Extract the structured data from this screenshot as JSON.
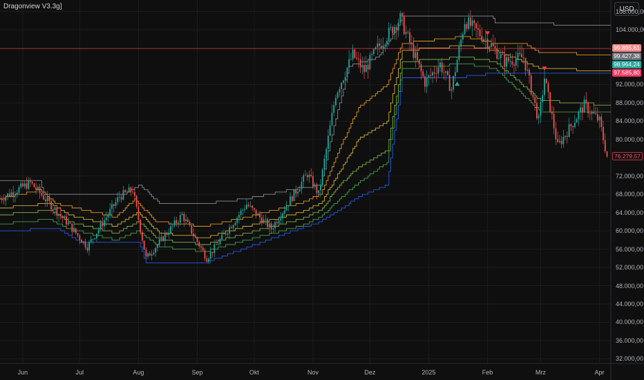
{
  "title": "Dragonview V3.3g]",
  "currency_button": "USD",
  "colors": {
    "background": "#0f0f0f",
    "candle_up": "#26a69a",
    "candle_down": "#ef5350",
    "resistance_line": "#f23645",
    "band_outer": "#9598a1",
    "band_orange": "#f5a623",
    "band_yellow": "#e8c23a",
    "band_green": "#8bc34a",
    "band_dgreen": "#4caf50",
    "band_blue": "#2962ff"
  },
  "price_badges": [
    {
      "label": "99.895,61",
      "value": 99895.61,
      "bg": "#f28b8b"
    },
    {
      "label": "99.427,38",
      "value": 99427.38,
      "bg": "#6d7079"
    },
    {
      "label": "98.964,24",
      "value": 98964.24,
      "bg": "#26a69a"
    },
    {
      "label": "97.585,80",
      "value": 97585.8,
      "bg": "#f23661"
    },
    {
      "label": "76.279,57",
      "value": 76279.57,
      "bg": "outline"
    }
  ],
  "chart_data": {
    "type": "candlestick",
    "title": "Dragonview V3.3g]",
    "y_range": [
      31000,
      110500
    ],
    "y_ticks": [
      {
        "label": "108.000,00",
        "value": 108000
      },
      {
        "label": "104.000,00",
        "value": 104000
      },
      {
        "label": "92.000,00",
        "value": 92000
      },
      {
        "label": "88.000,00",
        "value": 88000
      },
      {
        "label": "84.000,00",
        "value": 84000
      },
      {
        "label": "80.000,00",
        "value": 80000
      },
      {
        "label": "72.000,00",
        "value": 72000
      },
      {
        "label": "68.000,00",
        "value": 68000
      },
      {
        "label": "64.000,00",
        "value": 64000
      },
      {
        "label": "60.000,00",
        "value": 60000
      },
      {
        "label": "56.000,00",
        "value": 56000
      },
      {
        "label": "52.000,00",
        "value": 52000
      },
      {
        "label": "48.000,00",
        "value": 48000
      },
      {
        "label": "44.000,00",
        "value": 44000
      },
      {
        "label": "40.000,00",
        "value": 40000
      },
      {
        "label": "36.000,00",
        "value": 36000
      },
      {
        "label": "32.000,00",
        "value": 32000
      }
    ],
    "x_range": [
      "2024-05-20",
      "2025-04-07"
    ],
    "x_ticks": [
      {
        "label": "Jun",
        "date": "2024-06-01"
      },
      {
        "label": "Jul",
        "date": "2024-07-01"
      },
      {
        "label": "Aug",
        "date": "2024-08-01"
      },
      {
        "label": "Sep",
        "date": "2024-09-01"
      },
      {
        "label": "Okt",
        "date": "2024-10-01"
      },
      {
        "label": "Nov",
        "date": "2024-11-01"
      },
      {
        "label": "Dez",
        "date": "2024-12-01"
      },
      {
        "label": "2025",
        "date": "2025-01-01"
      },
      {
        "label": "Feb",
        "date": "2025-02-01"
      },
      {
        "label": "Mrz",
        "date": "2025-03-01"
      },
      {
        "label": "Apr",
        "date": "2025-04-01"
      }
    ],
    "price_path": [
      [
        "2024-05-20",
        67000
      ],
      [
        "2024-06-05",
        70500
      ],
      [
        "2024-06-24",
        62000
      ],
      [
        "2024-07-05",
        56500
      ],
      [
        "2024-07-22",
        67500
      ],
      [
        "2024-07-29",
        69000
      ],
      [
        "2024-08-05",
        54000
      ],
      [
        "2024-08-24",
        63500
      ],
      [
        "2024-09-06",
        54000
      ],
      [
        "2024-09-27",
        65800
      ],
      [
        "2024-10-10",
        60500
      ],
      [
        "2024-10-29",
        72500
      ],
      [
        "2024-11-04",
        68000
      ],
      [
        "2024-11-13",
        90000
      ],
      [
        "2024-11-22",
        98500
      ],
      [
        "2024-11-28",
        95000
      ],
      [
        "2024-12-05",
        100000
      ],
      [
        "2024-12-17",
        106500
      ],
      [
        "2024-12-30",
        92500
      ],
      [
        "2025-01-07",
        96500
      ],
      [
        "2025-01-13",
        91000
      ],
      [
        "2025-01-20",
        106000
      ],
      [
        "2025-01-31",
        102000
      ],
      [
        "2025-02-10",
        97000
      ],
      [
        "2025-02-20",
        98000
      ],
      [
        "2025-02-28",
        84000
      ],
      [
        "2025-03-03",
        93500
      ],
      [
        "2025-03-10",
        78500
      ],
      [
        "2025-03-24",
        87500
      ],
      [
        "2025-04-01",
        84000
      ],
      [
        "2025-04-05",
        76300
      ]
    ],
    "bands": [
      {
        "color": "#9598a1",
        "points": [
          [
            "2024-05-20",
            71000
          ],
          [
            "2024-06-10",
            71000
          ],
          [
            "2024-06-12",
            68000
          ],
          [
            "2024-07-25",
            68000
          ],
          [
            "2024-08-02",
            70000
          ],
          [
            "2024-08-12",
            66000
          ],
          [
            "2024-09-05",
            66000
          ],
          [
            "2024-09-27",
            67000
          ],
          [
            "2024-10-20",
            69000
          ],
          [
            "2024-11-05",
            70000
          ],
          [
            "2024-11-12",
            83000
          ],
          [
            "2024-11-20",
            96000
          ],
          [
            "2024-12-05",
            98000
          ],
          [
            "2024-12-15",
            104000
          ],
          [
            "2024-12-18",
            107000
          ],
          [
            "2025-02-03",
            107000
          ],
          [
            "2025-02-05",
            105500
          ],
          [
            "2025-04-07",
            105000
          ]
        ]
      },
      {
        "color": "#f5a623",
        "points": [
          [
            "2024-05-20",
            67000
          ],
          [
            "2024-06-10",
            69000
          ],
          [
            "2024-06-18",
            66000
          ],
          [
            "2024-07-20",
            63000
          ],
          [
            "2024-07-30",
            67000
          ],
          [
            "2024-08-10",
            62000
          ],
          [
            "2024-09-05",
            61000
          ],
          [
            "2024-09-27",
            63000
          ],
          [
            "2024-10-25",
            66000
          ],
          [
            "2024-11-05",
            68000
          ],
          [
            "2024-11-15",
            78000
          ],
          [
            "2024-11-25",
            87000
          ],
          [
            "2024-12-10",
            92000
          ],
          [
            "2024-12-18",
            101000
          ],
          [
            "2025-01-20",
            102500
          ],
          [
            "2025-02-05",
            101000
          ],
          [
            "2025-02-20",
            101000
          ],
          [
            "2025-03-01",
            99000
          ],
          [
            "2025-04-07",
            98500
          ]
        ]
      },
      {
        "color": "#e8c23a",
        "points": [
          [
            "2024-05-20",
            65000
          ],
          [
            "2024-06-15",
            66000
          ],
          [
            "2024-06-25",
            63500
          ],
          [
            "2024-07-20",
            61000
          ],
          [
            "2024-08-01",
            64000
          ],
          [
            "2024-08-12",
            59500
          ],
          [
            "2024-09-05",
            58500
          ],
          [
            "2024-09-27",
            61000
          ],
          [
            "2024-10-25",
            64000
          ],
          [
            "2024-11-05",
            66000
          ],
          [
            "2024-11-15",
            73000
          ],
          [
            "2024-11-25",
            80000
          ],
          [
            "2024-12-10",
            84000
          ],
          [
            "2024-12-18",
            99500
          ],
          [
            "2025-01-20",
            100500
          ],
          [
            "2025-02-05",
            99500
          ],
          [
            "2025-03-01",
            95500
          ],
          [
            "2025-04-07",
            95000
          ]
        ]
      },
      {
        "color": "#8bc34a",
        "points": [
          [
            "2024-05-20",
            63500
          ],
          [
            "2024-06-15",
            64500
          ],
          [
            "2024-06-25",
            62000
          ],
          [
            "2024-07-20",
            59500
          ],
          [
            "2024-08-01",
            62000
          ],
          [
            "2024-08-12",
            58000
          ],
          [
            "2024-09-05",
            57000
          ],
          [
            "2024-09-27",
            59500
          ],
          [
            "2024-10-25",
            62500
          ],
          [
            "2024-11-05",
            64500
          ],
          [
            "2024-11-15",
            70000
          ],
          [
            "2024-11-25",
            74000
          ],
          [
            "2024-12-10",
            77500
          ],
          [
            "2024-12-18",
            97000
          ],
          [
            "2025-01-20",
            98000
          ],
          [
            "2025-02-05",
            97000
          ],
          [
            "2025-03-01",
            88500
          ],
          [
            "2025-04-07",
            87500
          ]
        ]
      },
      {
        "color": "#4caf50",
        "points": [
          [
            "2024-05-20",
            61500
          ],
          [
            "2024-06-15",
            62500
          ],
          [
            "2024-06-25",
            60500
          ],
          [
            "2024-07-20",
            58000
          ],
          [
            "2024-08-01",
            60000
          ],
          [
            "2024-08-12",
            56500
          ],
          [
            "2024-09-05",
            55500
          ],
          [
            "2024-09-27",
            58000
          ],
          [
            "2024-10-25",
            61000
          ],
          [
            "2024-11-05",
            63000
          ],
          [
            "2024-11-15",
            67000
          ],
          [
            "2024-11-25",
            70500
          ],
          [
            "2024-12-10",
            75000
          ],
          [
            "2024-12-18",
            95500
          ],
          [
            "2025-01-20",
            96500
          ],
          [
            "2025-02-05",
            95500
          ],
          [
            "2025-03-01",
            86000
          ],
          [
            "2025-04-07",
            86000
          ]
        ]
      },
      {
        "color": "#2962ff",
        "points": [
          [
            "2024-05-20",
            60000
          ],
          [
            "2024-06-20",
            60500
          ],
          [
            "2024-07-01",
            57500
          ],
          [
            "2024-08-01",
            57500
          ],
          [
            "2024-08-05",
            53000
          ],
          [
            "2024-09-05",
            53000
          ],
          [
            "2024-09-25",
            56000
          ],
          [
            "2024-10-25",
            60500
          ],
          [
            "2024-11-05",
            62000
          ],
          [
            "2024-11-15",
            64500
          ],
          [
            "2024-11-25",
            67500
          ],
          [
            "2024-12-10",
            70000
          ],
          [
            "2024-12-18",
            93500
          ],
          [
            "2025-01-15",
            93500
          ],
          [
            "2025-02-05",
            94500
          ],
          [
            "2025-04-07",
            94500
          ]
        ]
      }
    ],
    "resistance_line": {
      "value": 99895.61,
      "color": "#f23645"
    },
    "signals": [
      {
        "type": "buy",
        "date": "2025-01-16",
        "value": 92200,
        "color": "#26a69a"
      },
      {
        "type": "sell",
        "date": "2025-02-01",
        "value": 103200,
        "color": "#f23645"
      },
      {
        "type": "sell",
        "date": "2025-03-03",
        "value": 95500,
        "color": "#f23645"
      }
    ]
  }
}
